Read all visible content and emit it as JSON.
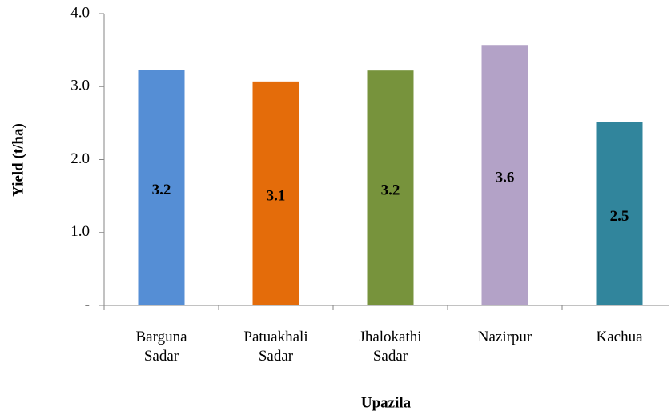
{
  "chart_data": {
    "type": "bar",
    "categories": [
      "Barguna Sadar",
      "Patuakhali Sadar",
      "Jhalokathi Sadar",
      "Nazirpur",
      "Kachua"
    ],
    "values": [
      3.23,
      3.07,
      3.22,
      3.57,
      2.51
    ],
    "value_labels": [
      "3.2",
      "3.1",
      "3.2",
      "3.6",
      "2.5"
    ],
    "colors": [
      "#558ed5",
      "#e46c0a",
      "#77933c",
      "#b3a2c7",
      "#31859c"
    ],
    "ylim": [
      0,
      4
    ],
    "yticks": [
      {
        "value": 0,
        "label": "-"
      },
      {
        "value": 1,
        "label": "1.0"
      },
      {
        "value": 2,
        "label": "2.0"
      },
      {
        "value": 3,
        "label": "3.0"
      },
      {
        "value": 4,
        "label": "4.0"
      }
    ],
    "xlabel": "Upazila",
    "ylabel": "Yield (t/ha)"
  }
}
